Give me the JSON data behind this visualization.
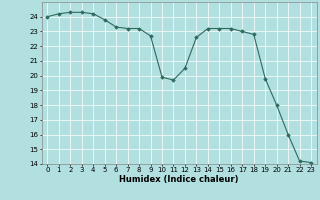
{
  "x": [
    0,
    1,
    2,
    3,
    4,
    5,
    6,
    7,
    8,
    9,
    10,
    11,
    12,
    13,
    14,
    15,
    16,
    17,
    18,
    19,
    20,
    21,
    22,
    23
  ],
  "y": [
    24.0,
    24.2,
    24.3,
    24.3,
    24.2,
    23.8,
    23.3,
    23.2,
    23.2,
    22.7,
    19.9,
    19.7,
    20.5,
    22.6,
    23.2,
    23.2,
    23.2,
    23.0,
    22.8,
    19.8,
    18.0,
    16.0,
    14.2,
    14.1
  ],
  "line_color": "#2d6b5e",
  "marker_color": "#2d6b5e",
  "bg_color": "#b2e0e0",
  "grid_color": "#ffffff",
  "xlabel": "Humidex (Indice chaleur)",
  "xlabel_fontsize": 6.0,
  "tick_fontsize": 5.0,
  "ylim": [
    14,
    25
  ],
  "xlim": [
    -0.5,
    23.5
  ],
  "yticks": [
    14,
    15,
    16,
    17,
    18,
    19,
    20,
    21,
    22,
    23,
    24
  ],
  "xticks": [
    0,
    1,
    2,
    3,
    4,
    5,
    6,
    7,
    8,
    9,
    10,
    11,
    12,
    13,
    14,
    15,
    16,
    17,
    18,
    19,
    20,
    21,
    22,
    23
  ]
}
